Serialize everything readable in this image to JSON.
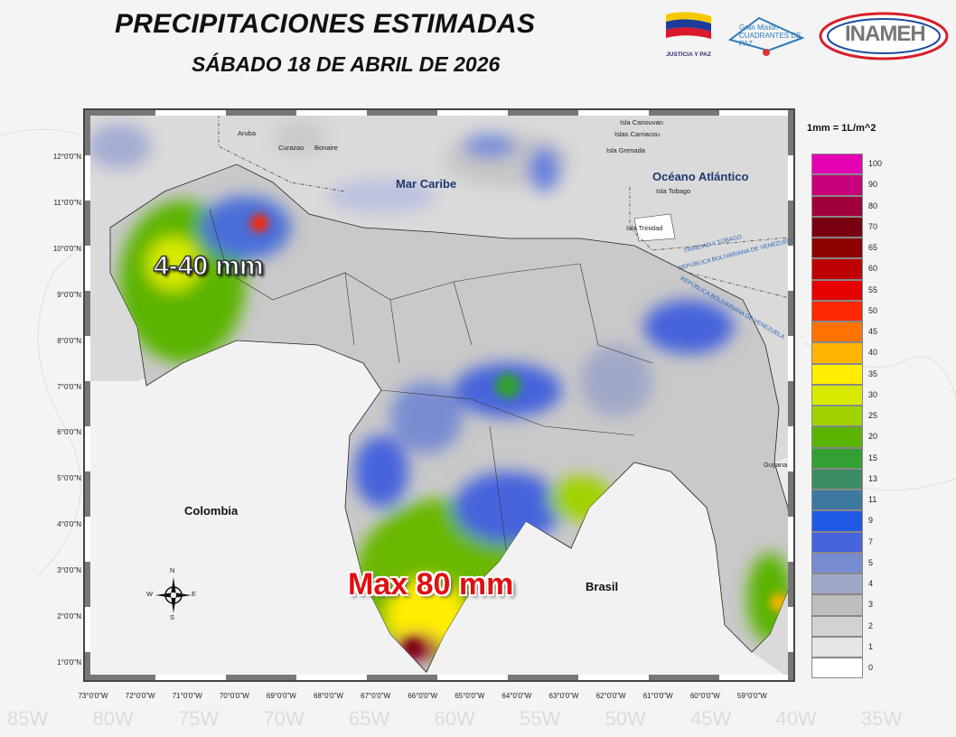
{
  "header": {
    "title": "PRECIPITACIONES ESTIMADAS",
    "date": "SÁBADO 18 DE ABRIL DE 2026"
  },
  "logos": [
    {
      "text": "JUSTICIA Y PAZ"
    },
    {
      "text": "Gran Misión CUADRANTES DE PAZ"
    },
    {
      "text": "INAMEH",
      "subtext": "INSTITUTO NACIONAL DE METEOROLOGÍA E HIDROLOGÍA"
    }
  ],
  "map": {
    "lat_labels": [
      "12°0'0\"N",
      "11°0'0\"N",
      "10°0'0\"N",
      "9°0'0\"N",
      "8°0'0\"N",
      "7°0'0\"N",
      "6°0'0\"N",
      "5°0'0\"N",
      "4°0'0\"N",
      "3°0'0\"N",
      "2°0'0\"N",
      "1°0'0\"N"
    ],
    "lon_labels": [
      "73°0'0\"W",
      "72°0'0\"W",
      "71°0'0\"W",
      "70°0'0\"W",
      "69°0'0\"W",
      "68°0'0\"W",
      "67°0'0\"W",
      "66°0'0\"W",
      "65°0'0\"W",
      "64°0'0\"W",
      "63°0'0\"W",
      "62°0'0\"W",
      "61°0'0\"W",
      "60°0'0\"W",
      "59°0'0\"W"
    ],
    "places": {
      "sea": "Mar Caribe",
      "ocean": "Océano Atlántico",
      "colombia": "Colombia",
      "brasil": "Brasil",
      "guyana": "Guyana",
      "aruba": "Aruba",
      "curazao": "Curazao",
      "bonaire": "Bonaire",
      "canouvan": "Isla Canouvan",
      "carriacou": "Islas Carriacou",
      "grenada": "Isla Grenada",
      "tobago": "Isla Tobago",
      "trinidad": "Isla Trinidad"
    },
    "boundary_labels": [
      "TRINIDAD Y TOBAGO",
      "REPÚBLICA BOLIVARIANA DE VENEZUELA",
      "REPÚBLICA BOLIVARIANA DE VENEZUELA"
    ],
    "annotations": [
      "4-40 mm",
      "Max 80 mm"
    ],
    "compass": {
      "n": "N",
      "s": "S",
      "e": "E",
      "w": "W"
    },
    "background_lon_labels": [
      "85W",
      "80W",
      "75W",
      "70W",
      "65W",
      "60W",
      "55W",
      "50W",
      "45W",
      "40W",
      "35W"
    ]
  },
  "legend": {
    "unit": "1mm = 1L/m^2",
    "items": [
      {
        "label": "100",
        "color": "#e600b4"
      },
      {
        "label": "90",
        "color": "#c8007a"
      },
      {
        "label": "80",
        "color": "#a0003c"
      },
      {
        "label": "70",
        "color": "#780010"
      },
      {
        "label": "65",
        "color": "#8c0000"
      },
      {
        "label": "60",
        "color": "#be0000"
      },
      {
        "label": "55",
        "color": "#e60000"
      },
      {
        "label": "50",
        "color": "#ff2800"
      },
      {
        "label": "45",
        "color": "#ff7300"
      },
      {
        "label": "40",
        "color": "#ffb400"
      },
      {
        "label": "35",
        "color": "#ffee00"
      },
      {
        "label": "30",
        "color": "#d7ea00"
      },
      {
        "label": "25",
        "color": "#a0d200"
      },
      {
        "label": "20",
        "color": "#5ab400"
      },
      {
        "label": "15",
        "color": "#32a032"
      },
      {
        "label": "13",
        "color": "#3c8c64"
      },
      {
        "label": "11",
        "color": "#3c78a0"
      },
      {
        "label": "9",
        "color": "#1e5ae6"
      },
      {
        "label": "7",
        "color": "#4664dc"
      },
      {
        "label": "5",
        "color": "#788cd2"
      },
      {
        "label": "4",
        "color": "#a0a8c8"
      },
      {
        "label": "3",
        "color": "#bebebe"
      },
      {
        "label": "2",
        "color": "#d2d2d2"
      },
      {
        "label": "1",
        "color": "#e6e6e6"
      },
      {
        "label": "0",
        "color": "#ffffff"
      }
    ]
  }
}
